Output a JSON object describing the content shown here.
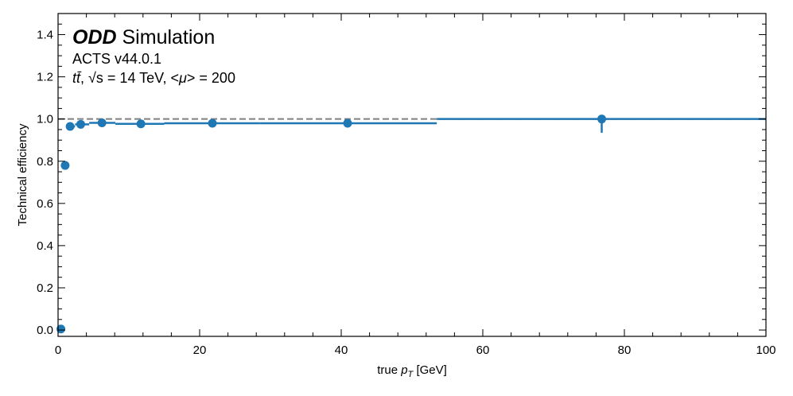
{
  "chart_data": {
    "type": "scatter",
    "xlabel_prefix": "true ",
    "xlabel_var": "p",
    "xlabel_sub": "T",
    "xlabel_unit": " [GeV]",
    "ylabel": "Technical efficiency",
    "xlim": [
      0,
      100
    ],
    "ylim": [
      -0.03,
      1.5
    ],
    "xticks": [
      0,
      20,
      40,
      60,
      80,
      100
    ],
    "yticks": [
      0.0,
      0.2,
      0.4,
      0.6,
      0.8,
      1.0,
      1.2,
      1.4
    ],
    "xtick_labels": [
      "0",
      "20",
      "40",
      "60",
      "80",
      "100"
    ],
    "ytick_labels": [
      "0.0",
      "0.2",
      "0.4",
      "0.6",
      "0.8",
      "1.0",
      "1.2",
      "1.4"
    ],
    "reference_line": {
      "y": 1.0,
      "style": "dashed",
      "color": "#808080"
    },
    "series": [
      {
        "color": "#1f77b4",
        "points": [
          {
            "x": 0.4,
            "y": 0.005,
            "xlo": 0.0,
            "xhi": 0.7,
            "yerr": 0.0
          },
          {
            "x": 1.0,
            "y": 0.78,
            "xlo": 0.7,
            "xhi": 1.3,
            "yerr": 0.0
          },
          {
            "x": 1.7,
            "y": 0.965,
            "xlo": 1.3,
            "xhi": 2.4,
            "yerr": 0.0
          },
          {
            "x": 3.2,
            "y": 0.975,
            "xlo": 2.4,
            "xhi": 4.4,
            "yerr": 0.0
          },
          {
            "x": 6.2,
            "y": 0.982,
            "xlo": 4.4,
            "xhi": 8.1,
            "yerr": 0.0
          },
          {
            "x": 11.7,
            "y": 0.977,
            "xlo": 8.1,
            "xhi": 15.0,
            "yerr": 0.0
          },
          {
            "x": 21.8,
            "y": 0.98,
            "xlo": 15.0,
            "xhi": 28.5,
            "yerr": 0.0
          },
          {
            "x": 40.9,
            "y": 0.98,
            "xlo": 28.5,
            "xhi": 53.5,
            "yerr": 0.0
          },
          {
            "x": 76.8,
            "y": 1.0,
            "xlo": 53.5,
            "xhi": 100.0,
            "yerr_lo": 0.065,
            "yerr_hi": 0.0
          }
        ]
      }
    ],
    "grid": false,
    "annotations": {
      "title_bold": "ODD",
      "title_rest": " Simulation",
      "version": "ACTS v44.0.1",
      "process_tt": "tt̄",
      "process_sqrt": "√s",
      "process_energy": " = 14 TeV, <",
      "process_mu": "μ",
      "process_pu": "> = 200"
    }
  }
}
